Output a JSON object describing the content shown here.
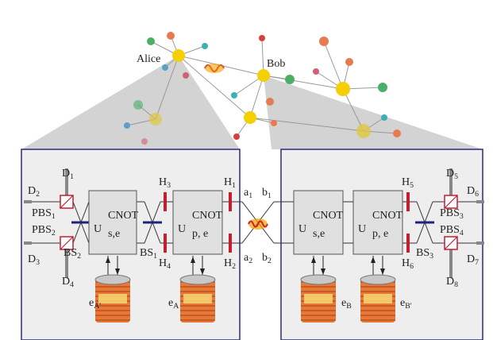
{
  "network": {
    "alice": "Alice",
    "bob": "Bob"
  },
  "detectors": [
    {
      "base": "D",
      "sub": "1"
    },
    {
      "base": "D",
      "sub": "2"
    },
    {
      "base": "D",
      "sub": "3"
    },
    {
      "base": "D",
      "sub": "4"
    },
    {
      "base": "D",
      "sub": "5"
    },
    {
      "base": "D",
      "sub": "6"
    },
    {
      "base": "D",
      "sub": "7"
    },
    {
      "base": "D",
      "sub": "8"
    }
  ],
  "pbs": [
    {
      "base": "PBS",
      "sub": "1"
    },
    {
      "base": "PBS",
      "sub": "2"
    },
    {
      "base": "PBS",
      "sub": "3"
    },
    {
      "base": "PBS",
      "sub": "4"
    }
  ],
  "bs": [
    {
      "base": "BS",
      "sub": "1"
    },
    {
      "base": "BS",
      "sub": "2"
    },
    {
      "base": "BS",
      "sub": "3"
    }
  ],
  "hwp": [
    {
      "base": "H",
      "sub": "1"
    },
    {
      "base": "H",
      "sub": "2"
    },
    {
      "base": "H",
      "sub": "3"
    },
    {
      "base": "H",
      "sub": "4"
    },
    {
      "base": "H",
      "sub": "5"
    },
    {
      "base": "H",
      "sub": "6"
    }
  ],
  "modes": [
    {
      "base": "a",
      "sub": "1"
    },
    {
      "base": "b",
      "sub": "1"
    },
    {
      "base": "a",
      "sub": "2"
    },
    {
      "base": "b",
      "sub": "2"
    }
  ],
  "gates": [
    {
      "base": "U",
      "sup": "CNOT",
      "sub": "s,e"
    },
    {
      "base": "U",
      "sup": "CNOT",
      "sub": "p, e"
    },
    {
      "base": "U",
      "sup": "CNOT",
      "sub": "s,e"
    },
    {
      "base": "U",
      "sup": "CNOT",
      "sub": "p, e"
    }
  ],
  "memories": [
    {
      "base": "e",
      "sub": "A'"
    },
    {
      "base": "e",
      "sub": "A"
    },
    {
      "base": "e",
      "sub": "B"
    },
    {
      "base": "e",
      "sub": "B'"
    }
  ]
}
